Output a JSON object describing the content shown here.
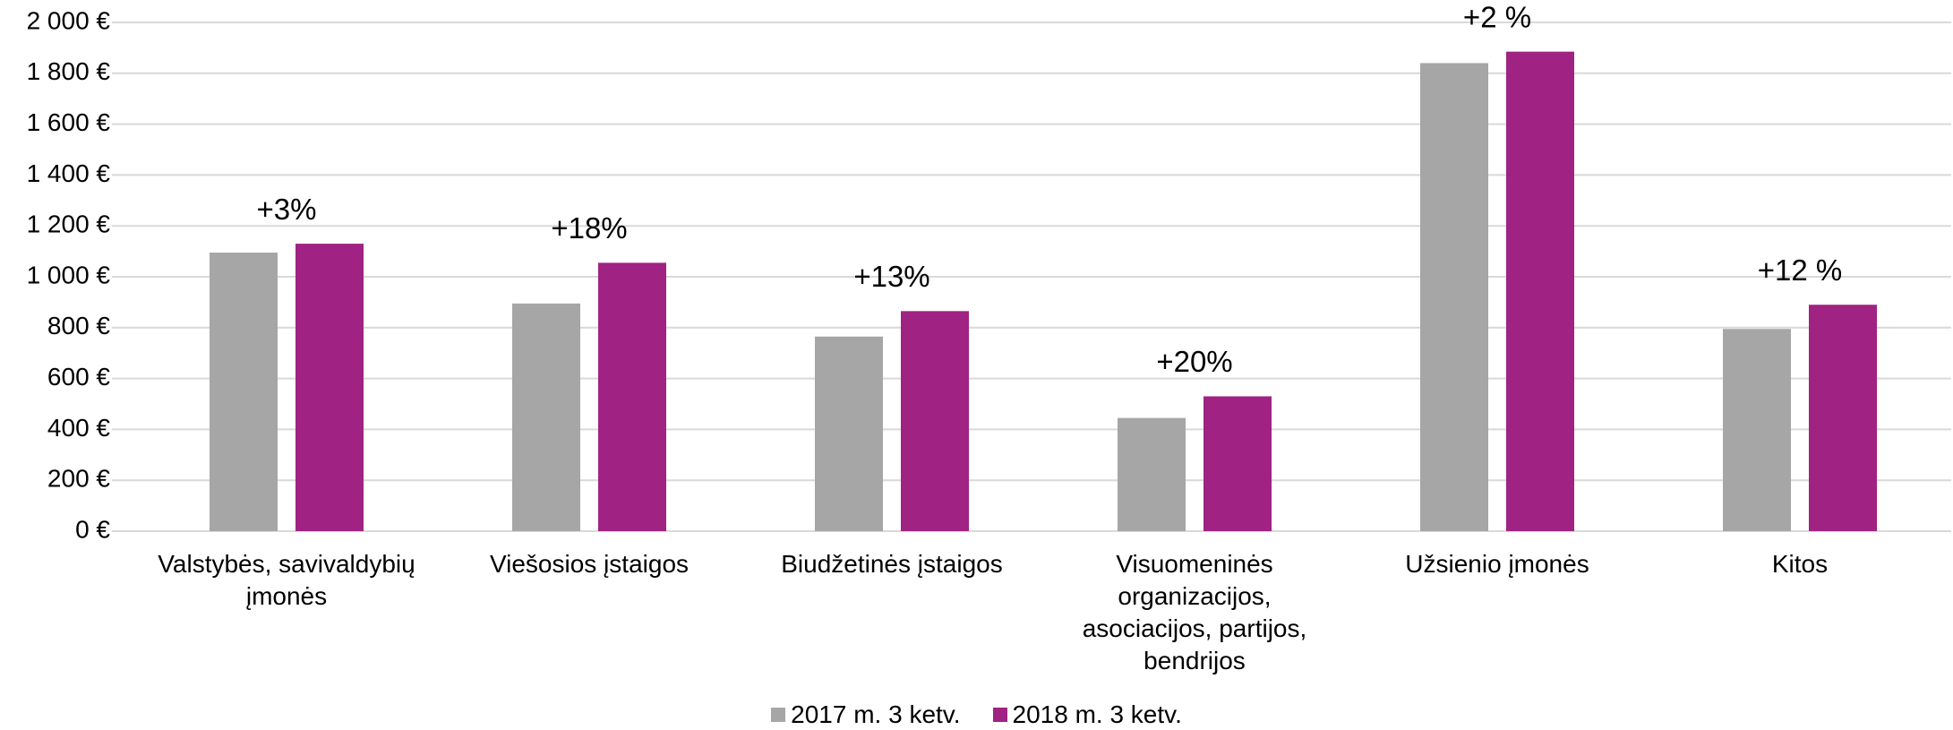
{
  "chart_data": {
    "type": "bar",
    "categories": [
      "Valstybės, savivaldybių įmonės",
      "Viešosios įstaigos",
      "Biudžetinės įstaigos",
      "Visuomeninės organizacijos, asociacijos, partijos, bendrijos",
      "Užsienio įmonės",
      "Kitos"
    ],
    "series": [
      {
        "name": "2017 m. 3 ketv.",
        "color": "#a6a6a6",
        "values": [
          1095,
          895,
          765,
          445,
          1840,
          795
        ]
      },
      {
        "name": "2018 m. 3 ketv.",
        "color": "#a02283",
        "values": [
          1130,
          1055,
          865,
          530,
          1885,
          890
        ]
      }
    ],
    "annotations": [
      "+3%",
      "+18%",
      "+13%",
      "+20%",
      "+2 %",
      "+12 %"
    ],
    "ylim": [
      0,
      2000
    ],
    "yticks": [
      {
        "value": 0,
        "label": "0 €"
      },
      {
        "value": 200,
        "label": "200 €"
      },
      {
        "value": 400,
        "label": "400 €"
      },
      {
        "value": 600,
        "label": "600 €"
      },
      {
        "value": 800,
        "label": "800 €"
      },
      {
        "value": 1000,
        "label": "1 000 €"
      },
      {
        "value": 1200,
        "label": "1 200 €"
      },
      {
        "value": 1400,
        "label": "1 400 €"
      },
      {
        "value": 1600,
        "label": "1 600 €"
      },
      {
        "value": 1800,
        "label": "1 800 €"
      },
      {
        "value": 2000,
        "label": "2 000 €"
      }
    ],
    "grid": true,
    "legend": "bottom"
  }
}
